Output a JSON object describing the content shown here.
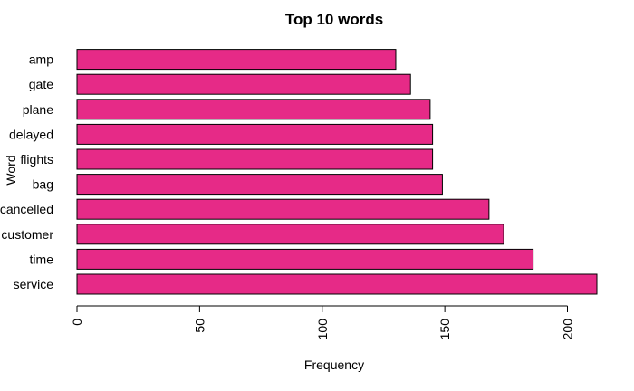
{
  "chart_data": {
    "type": "bar",
    "orientation": "horizontal",
    "title": "Top 10 words",
    "xlabel": "Frequency",
    "ylabel": "Word",
    "categories": [
      "service",
      "time",
      "customer",
      "cancelled",
      "bag",
      "flights",
      "delayed",
      "plane",
      "gate",
      "amp"
    ],
    "values": [
      212,
      186,
      174,
      168,
      149,
      145,
      145,
      144,
      136,
      130
    ],
    "xlim": [
      0,
      212
    ],
    "xticks": [
      0,
      50,
      100,
      150,
      200
    ],
    "grid": false,
    "bar_color": "#e62a87"
  }
}
